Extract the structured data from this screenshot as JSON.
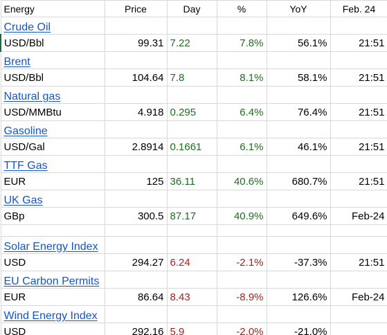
{
  "header": {
    "name": "Energy",
    "price": "Price",
    "day": "Day",
    "pct": "%",
    "yoy": "YoY",
    "date": "Feb. 24"
  },
  "rows": [
    {
      "name": "Crude Oil",
      "unit": "USD/Bbl",
      "price": "99.31",
      "day": "7.22",
      "pct": "7.8%",
      "yoy": "56.1%",
      "time": "21:51",
      "trend": "up"
    },
    {
      "name": "Brent",
      "unit": "USD/Bbl",
      "price": "104.64",
      "day": "7.8",
      "pct": "8.1%",
      "yoy": "58.1%",
      "time": "21:51",
      "trend": "up"
    },
    {
      "name": "Natural gas",
      "unit": "USD/MMBtu",
      "price": "4.918",
      "day": "0.295",
      "pct": "6.4%",
      "yoy": "76.4%",
      "time": "21:51",
      "trend": "up"
    },
    {
      "name": "Gasoline",
      "unit": "USD/Gal",
      "price": "2.8914",
      "day": "0.1661",
      "pct": "6.1%",
      "yoy": "46.1%",
      "time": "21:51",
      "trend": "up"
    },
    {
      "name": "TTF Gas",
      "unit": "EUR",
      "price": "125",
      "day": "36.11",
      "pct": "40.6%",
      "yoy": "680.7%",
      "time": "21:51",
      "trend": "up"
    },
    {
      "name": "UK Gas",
      "unit": "GBp",
      "price": "300.5",
      "day": "87.17",
      "pct": "40.9%",
      "yoy": "649.6%",
      "time": "Feb-24",
      "trend": "up"
    },
    {
      "name": "Solar Energy Index",
      "unit": "USD",
      "price": "294.27",
      "day": "6.24",
      "pct": "-2.1%",
      "yoy": "-37.3%",
      "time": "21:51",
      "trend": "down"
    },
    {
      "name": "EU Carbon Permits",
      "unit": "EUR",
      "price": "86.64",
      "day": "8.43",
      "pct": "-8.9%",
      "yoy": "126.6%",
      "time": "Feb-24",
      "trend": "down"
    },
    {
      "name": "Wind Energy Index",
      "unit": "USD",
      "price": "292.16",
      "day": "5.9",
      "pct": "-2.0%",
      "yoy": "-21.0%",
      "time": "",
      "trend": "down"
    }
  ],
  "colors": {
    "link": "#1155cc",
    "positive": "#1e6e1e",
    "negative": "#a0231f",
    "gridline": "#d8d8d8"
  }
}
